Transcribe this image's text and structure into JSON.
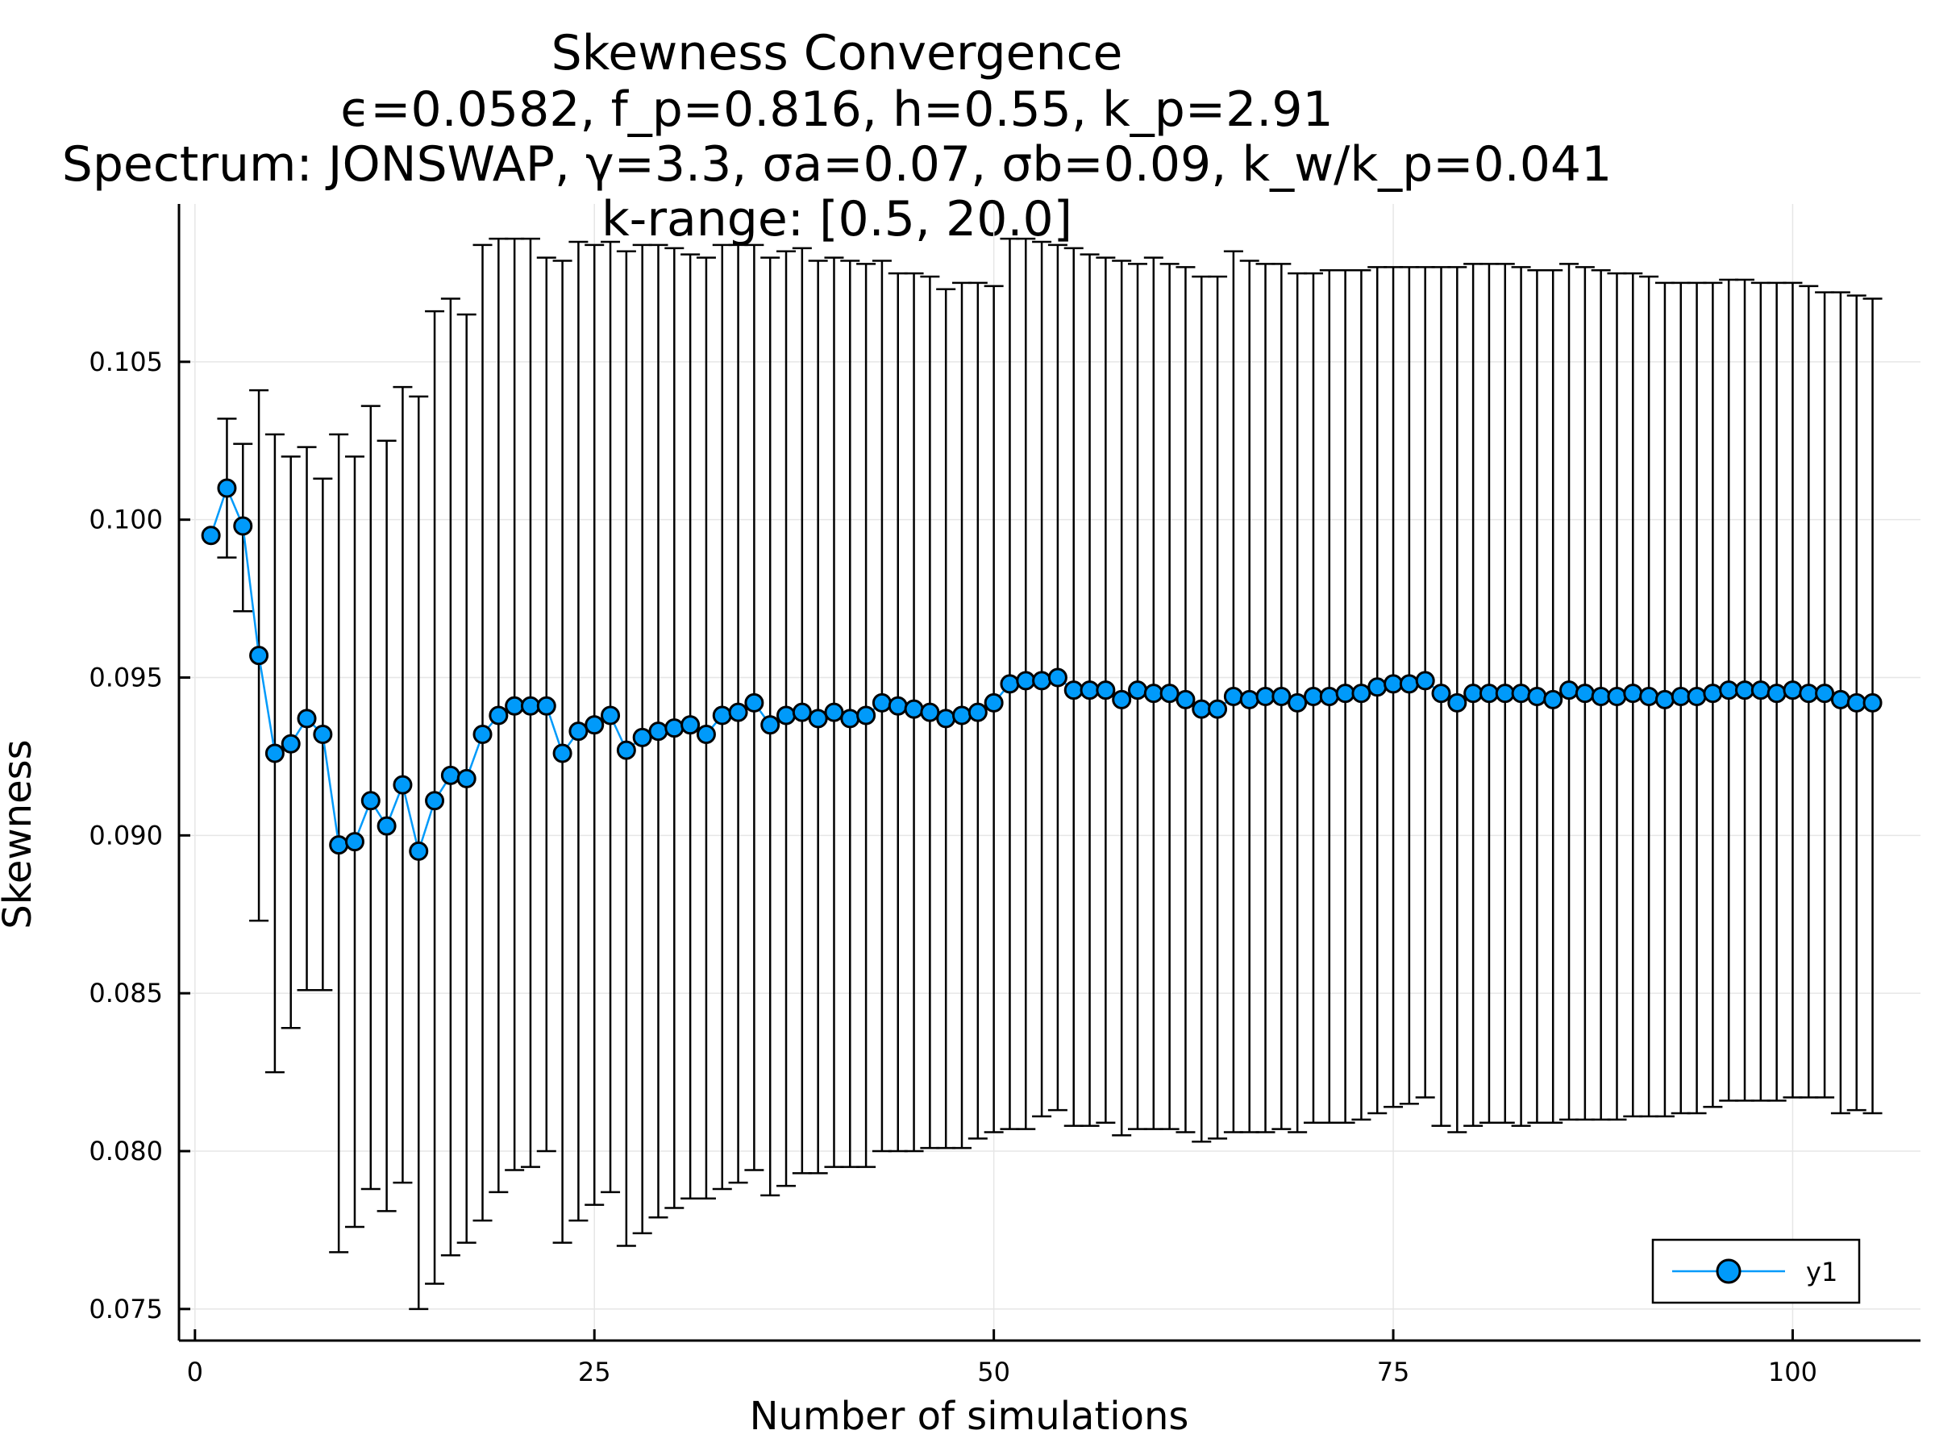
{
  "chart_data": {
    "type": "scatter",
    "title": "Skewness Convergence",
    "subtitle_lines": [
      "ϵ=0.0582, f_p=0.816, h=0.55, k_p=2.91",
      "Spectrum: JONSWAP, γ=3.3, σa=0.07, σb=0.09, k_w/k_p=0.041",
      "k-range: [0.5, 20.0]"
    ],
    "xlabel": "Number of simulations",
    "ylabel": "Skewness",
    "xlim": [
      -1,
      108
    ],
    "ylim": [
      0.074,
      0.11
    ],
    "xticks": [
      0,
      25,
      50,
      75,
      100
    ],
    "xtick_labels": [
      "0",
      "25",
      "50",
      "75",
      "100"
    ],
    "yticks": [
      0.075,
      0.08,
      0.085,
      0.09,
      0.095,
      0.1,
      0.105
    ],
    "ytick_labels": [
      "0.075",
      "0.080",
      "0.085",
      "0.090",
      "0.095",
      "0.100",
      "0.105"
    ],
    "grid": true,
    "legend_position": "bottom-right",
    "series": [
      {
        "name": "y1",
        "color": "#009AFA",
        "marker": "circle",
        "errorbars": true,
        "x": [
          1,
          2,
          3,
          4,
          5,
          6,
          7,
          8,
          9,
          10,
          11,
          12,
          13,
          14,
          15,
          16,
          17,
          18,
          19,
          20,
          21,
          22,
          23,
          24,
          25,
          26,
          27,
          28,
          29,
          30,
          31,
          32,
          33,
          34,
          35,
          36,
          37,
          38,
          39,
          40,
          41,
          42,
          43,
          44,
          45,
          46,
          47,
          48,
          49,
          50,
          51,
          52,
          53,
          54,
          55,
          56,
          57,
          58,
          59,
          60,
          61,
          62,
          63,
          64,
          65,
          66,
          67,
          68,
          69,
          70,
          71,
          72,
          73,
          74,
          75,
          76,
          77,
          78,
          79,
          80,
          81,
          82,
          83,
          84,
          85,
          86,
          87,
          88,
          89,
          90,
          91,
          92,
          93,
          94,
          95,
          96,
          97,
          98,
          99,
          100,
          101,
          102,
          103,
          104,
          105
        ],
        "y": [
          0.0995,
          0.101,
          0.0998,
          0.0957,
          0.0926,
          0.0929,
          0.0937,
          0.0932,
          0.0897,
          0.0898,
          0.0911,
          0.0903,
          0.0916,
          0.0895,
          0.0911,
          0.0919,
          0.0918,
          0.0932,
          0.0938,
          0.0941,
          0.0941,
          0.0941,
          0.0926,
          0.0933,
          0.0935,
          0.0938,
          0.0927,
          0.0931,
          0.0933,
          0.0934,
          0.0935,
          0.0932,
          0.0938,
          0.0939,
          0.0942,
          0.0935,
          0.0938,
          0.0939,
          0.0937,
          0.0939,
          0.0937,
          0.0938,
          0.0942,
          0.0941,
          0.094,
          0.0939,
          0.0937,
          0.0938,
          0.0939,
          0.0942,
          0.0948,
          0.0949,
          0.0949,
          0.095,
          0.0946,
          0.0946,
          0.0946,
          0.0943,
          0.0946,
          0.0945,
          0.0945,
          0.0943,
          0.094,
          0.094,
          0.0944,
          0.0943,
          0.0944,
          0.0944,
          0.0942,
          0.0944,
          0.0944,
          0.0945,
          0.0945,
          0.0947,
          0.0948,
          0.0948,
          0.0949,
          0.0945,
          0.0942,
          0.0945,
          0.0945,
          0.0945,
          0.0945,
          0.0944,
          0.0943,
          0.0946,
          0.0945,
          0.0944,
          0.0944,
          0.0945,
          0.0944,
          0.0943,
          0.0944,
          0.0944,
          0.0945,
          0.0946,
          0.0946,
          0.0946,
          0.0945,
          0.0946,
          0.0945,
          0.0945,
          0.0943,
          0.0942,
          0.0942
        ],
        "yerr_low": [
          null,
          0.0988,
          0.0971,
          0.0873,
          0.0825,
          0.0839,
          0.0851,
          0.0851,
          0.0768,
          0.0776,
          0.0788,
          0.0781,
          0.079,
          0.075,
          0.0758,
          0.0767,
          0.0771,
          0.0778,
          0.0787,
          0.0794,
          0.0795,
          0.08,
          0.0771,
          0.0778,
          0.0783,
          0.0787,
          0.077,
          0.0774,
          0.0779,
          0.0782,
          0.0785,
          0.0785,
          0.0788,
          0.079,
          0.0794,
          0.0786,
          0.0789,
          0.0793,
          0.0793,
          0.0795,
          0.0795,
          0.0795,
          0.08,
          0.08,
          0.08,
          0.0801,
          0.0801,
          0.0801,
          0.0804,
          0.0806,
          0.0807,
          0.0807,
          0.0811,
          0.0813,
          0.0808,
          0.0808,
          0.0809,
          0.0805,
          0.0807,
          0.0807,
          0.0807,
          0.0806,
          0.0803,
          0.0804,
          0.0806,
          0.0806,
          0.0806,
          0.0807,
          0.0806,
          0.0809,
          0.0809,
          0.0809,
          0.081,
          0.0812,
          0.0814,
          0.0815,
          0.0817,
          0.0808,
          0.0806,
          0.0808,
          0.0809,
          0.0809,
          0.0808,
          0.0809,
          0.0809,
          0.081,
          0.081,
          0.081,
          0.081,
          0.0811,
          0.0811,
          0.0811,
          0.0812,
          0.0812,
          0.0814,
          0.0816,
          0.0816,
          0.0816,
          0.0816,
          0.0817,
          0.0817,
          0.0817,
          0.0812,
          0.0813,
          0.0812
        ],
        "yerr_high": [
          null,
          0.1032,
          0.1024,
          0.1041,
          0.1027,
          0.102,
          0.1023,
          0.1013,
          0.1027,
          0.102,
          0.1036,
          0.1025,
          0.1042,
          0.1039,
          0.1066,
          0.107,
          0.1065,
          0.1087,
          0.1089,
          0.1089,
          0.1089,
          0.1083,
          0.1082,
          0.1088,
          0.1087,
          0.1088,
          0.1085,
          0.1087,
          0.1087,
          0.1086,
          0.1084,
          0.1083,
          0.1087,
          0.1087,
          0.1087,
          0.1083,
          0.1085,
          0.1086,
          0.1082,
          0.1083,
          0.1082,
          0.1081,
          0.1082,
          0.1078,
          0.1078,
          0.1077,
          0.1073,
          0.1075,
          0.1075,
          0.1074,
          0.1089,
          0.1089,
          0.1088,
          0.1087,
          0.1086,
          0.1084,
          0.1083,
          0.1082,
          0.1081,
          0.1083,
          0.1081,
          0.108,
          0.1077,
          0.1077,
          0.1085,
          0.1082,
          0.1081,
          0.1081,
          0.1078,
          0.1078,
          0.1079,
          0.1079,
          0.1079,
          0.108,
          0.108,
          0.108,
          0.108,
          0.108,
          0.108,
          0.1081,
          0.1081,
          0.1081,
          0.108,
          0.1079,
          0.1079,
          0.1081,
          0.108,
          0.1079,
          0.1078,
          0.1078,
          0.1077,
          0.1075,
          0.1075,
          0.1075,
          0.1075,
          0.1076,
          0.1076,
          0.1075,
          0.1075,
          0.1075,
          0.1074,
          0.1072,
          0.1072,
          0.1071,
          0.107
        ]
      }
    ]
  }
}
